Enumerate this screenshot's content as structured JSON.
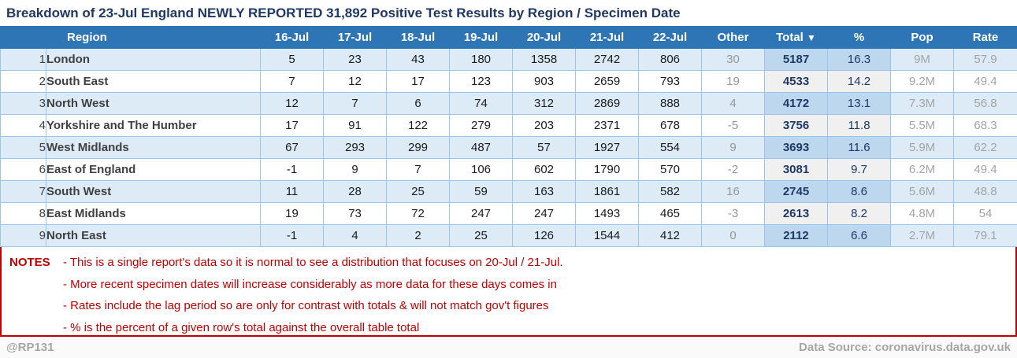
{
  "chart_data": {
    "type": "table",
    "title": "Breakdown of 23-Jul England NEWLY REPORTED 31,892 Positive Test Results by Region / Specimen Date",
    "columns": [
      "",
      "Region",
      "16-Jul",
      "17-Jul",
      "18-Jul",
      "19-Jul",
      "20-Jul",
      "21-Jul",
      "22-Jul",
      "Other",
      "Total",
      "%",
      "Pop",
      "Rate"
    ],
    "sort_icon": "▼",
    "rows": [
      [
        "1",
        "London",
        "5",
        "23",
        "43",
        "180",
        "1358",
        "2742",
        "806",
        "30",
        "5187",
        "16.3",
        "9M",
        "57.9"
      ],
      [
        "2",
        "South East",
        "7",
        "12",
        "17",
        "123",
        "903",
        "2659",
        "793",
        "19",
        "4533",
        "14.2",
        "9.2M",
        "49.4"
      ],
      [
        "3",
        "North West",
        "12",
        "7",
        "6",
        "74",
        "312",
        "2869",
        "888",
        "4",
        "4172",
        "13.1",
        "7.3M",
        "56.8"
      ],
      [
        "4",
        "Yorkshire and The Humber",
        "17",
        "91",
        "122",
        "279",
        "203",
        "2371",
        "678",
        "-5",
        "3756",
        "11.8",
        "5.5M",
        "68.3"
      ],
      [
        "5",
        "West Midlands",
        "67",
        "293",
        "299",
        "487",
        "57",
        "1927",
        "554",
        "9",
        "3693",
        "11.6",
        "5.9M",
        "62.2"
      ],
      [
        "6",
        "East of England",
        "-1",
        "9",
        "7",
        "106",
        "602",
        "1790",
        "570",
        "-2",
        "3081",
        "9.7",
        "6.2M",
        "49.4"
      ],
      [
        "7",
        "South West",
        "11",
        "28",
        "25",
        "59",
        "163",
        "1861",
        "582",
        "16",
        "2745",
        "8.6",
        "5.6M",
        "48.8"
      ],
      [
        "8",
        "East Midlands",
        "19",
        "73",
        "72",
        "247",
        "247",
        "1493",
        "465",
        "-3",
        "2613",
        "8.2",
        "4.8M",
        "54"
      ],
      [
        "9",
        "North East",
        "-1",
        "4",
        "2",
        "25",
        "126",
        "1544",
        "412",
        "0",
        "2112",
        "6.6",
        "2.7M",
        "79.1"
      ]
    ]
  },
  "notes": {
    "label": "NOTES",
    "lines": [
      "- This is a single report's data so it is normal to see a distribution that focuses on 20-Jul / 21-Jul.",
      "- More recent specimen dates will increase considerably as more data for these days comes in",
      "- Rates include the lag period so are only for contrast with totals & will not match gov't figures",
      "- % is the percent of a given row's total against the overall table total"
    ]
  },
  "footer": {
    "handle": "@RP131",
    "data_source": "Data Source: coronavirus.data.gov.uk"
  },
  "colors": {
    "header_blue": "#2E75B6",
    "band_blue": "#DDEBF7",
    "highlight_blue": "#BDD7EE",
    "highlight_gray": "#F0F0F0",
    "title_navy": "#1F3864",
    "notes_red": "#C00000",
    "footer_gray": "#A6A6A6",
    "border_blue": "#9DC3E6"
  }
}
